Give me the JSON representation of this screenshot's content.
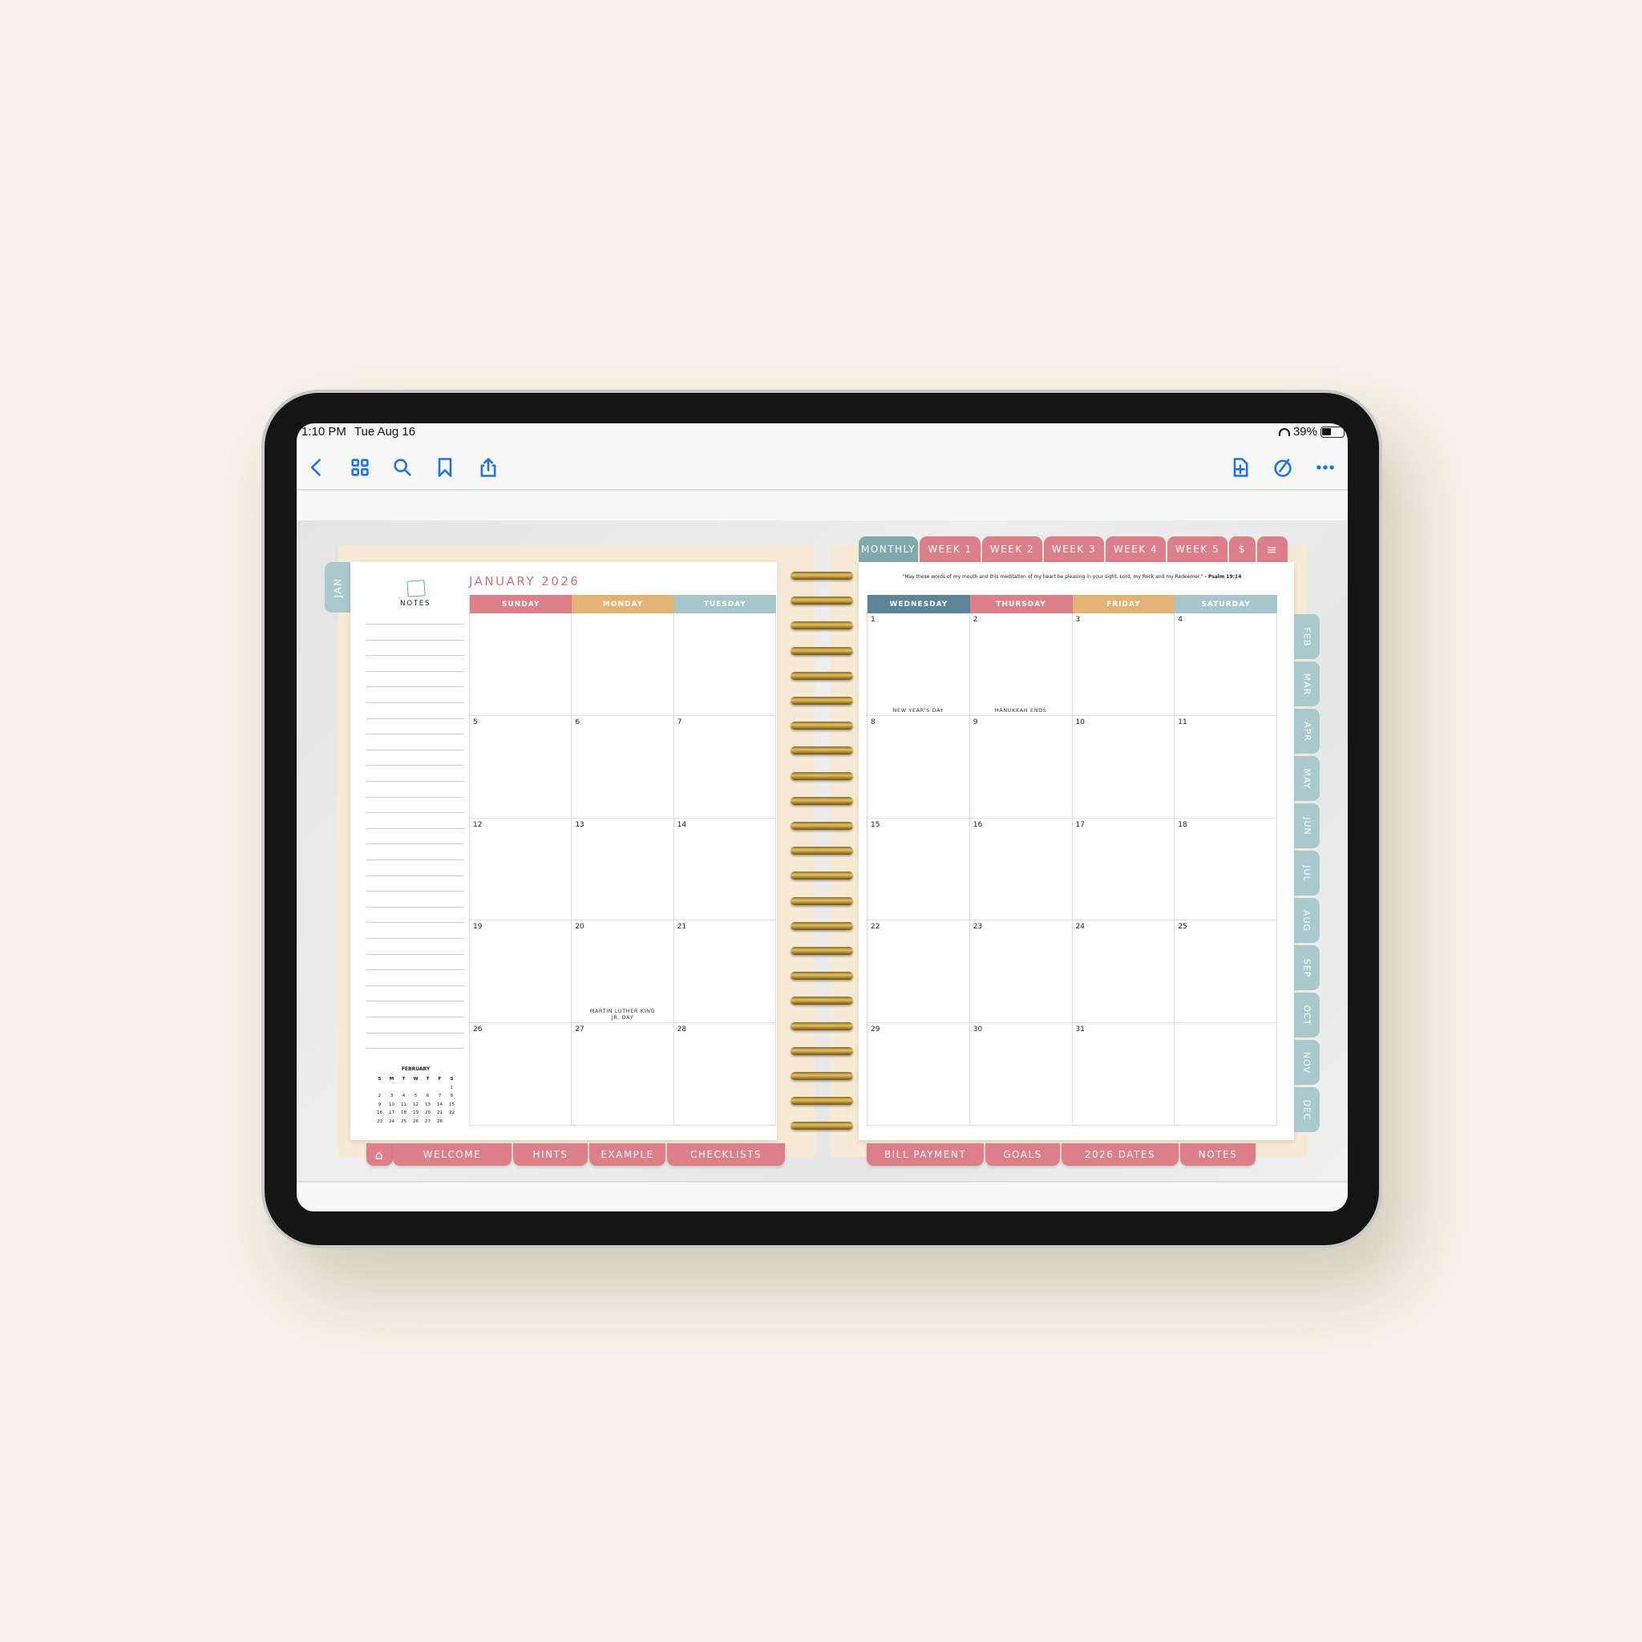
{
  "status_bar": {
    "time": "1:10 PM",
    "date": "Tue Aug 16",
    "battery": "39%",
    "battery_level": 0.39
  },
  "toolbar": {
    "left_icons": [
      "back-chevron-icon",
      "grid-icon",
      "search-icon",
      "bookmark-icon",
      "share-icon"
    ],
    "right_icons": [
      "add-page-icon",
      "markup-pen-icon",
      "more-ellipsis-icon"
    ]
  },
  "colors": {
    "pink": "#dc7f88",
    "gold": "#e2b374",
    "teal": "#a6c6c9",
    "slate": "#5e849a",
    "accent": "#1a73e8"
  },
  "planner": {
    "month_title": "JANUARY 2026",
    "side_tab": "JAN",
    "notes_label": "NOTES",
    "quote": "\"May these words of my mouth and this meditation of my heart be pleasing in your sight, Lord, my Rock and my Redeemer.\"",
    "quote_ref": "- Psalm 19:14",
    "top_tabs": [
      "MONTHLY",
      "WEEK 1",
      "WEEK 2",
      "WEEK 3",
      "WEEK 4",
      "WEEK 5",
      "$"
    ],
    "month_tabs": [
      "FEB",
      "MAR",
      "APR",
      "MAY",
      "JUN",
      "JUL",
      "AUG",
      "SEP",
      "OCT",
      "NOV",
      "DEC"
    ],
    "bottom_tabs_left": [
      "WELCOME",
      "HINTS",
      "EXAMPLE",
      "CHECKLISTS"
    ],
    "bottom_tabs_right": [
      "BILL PAYMENT",
      "GOALS",
      "2026 DATES",
      "NOTES"
    ],
    "left_days": [
      {
        "name": "SUNDAY",
        "color": "#dc7f88"
      },
      {
        "name": "MONDAY",
        "color": "#e2b374"
      },
      {
        "name": "TUESDAY",
        "color": "#a6c6c9"
      }
    ],
    "right_days": [
      {
        "name": "WEDNESDAY",
        "color": "#5e849a"
      },
      {
        "name": "THURSDAY",
        "color": "#dc7f88"
      },
      {
        "name": "FRIDAY",
        "color": "#e2b374"
      },
      {
        "name": "SATURDAY",
        "color": "#a6c6c9"
      }
    ],
    "left_weeks": [
      [
        "",
        "",
        ""
      ],
      [
        "5",
        "6",
        "7"
      ],
      [
        "12",
        "13",
        "14"
      ],
      [
        "19",
        "20",
        "21"
      ],
      [
        "26",
        "27",
        "28"
      ]
    ],
    "right_weeks": [
      [
        "1",
        "2",
        "3",
        "4"
      ],
      [
        "8",
        "9",
        "10",
        "11"
      ],
      [
        "15",
        "16",
        "17",
        "18"
      ],
      [
        "22",
        "23",
        "24",
        "25"
      ],
      [
        "29",
        "30",
        "31",
        ""
      ]
    ],
    "holidays": {
      "1": "NEW YEAR'S DAY",
      "2": "HANUKKAH ENDS",
      "20": "MARTIN LUTHER KING JR. DAY"
    },
    "mini_calendar": {
      "title": "FEBRUARY",
      "weekdays": [
        "S",
        "M",
        "T",
        "W",
        "T",
        "F",
        "S"
      ],
      "weeks": [
        [
          "",
          "",
          "",
          "",
          "",
          "",
          "1"
        ],
        [
          "2",
          "3",
          "4",
          "5",
          "6",
          "7",
          "8"
        ],
        [
          "9",
          "10",
          "11",
          "12",
          "13",
          "14",
          "15"
        ],
        [
          "16",
          "17",
          "18",
          "19",
          "20",
          "21",
          "22"
        ],
        [
          "23",
          "24",
          "25",
          "26",
          "27",
          "28",
          ""
        ]
      ]
    }
  }
}
